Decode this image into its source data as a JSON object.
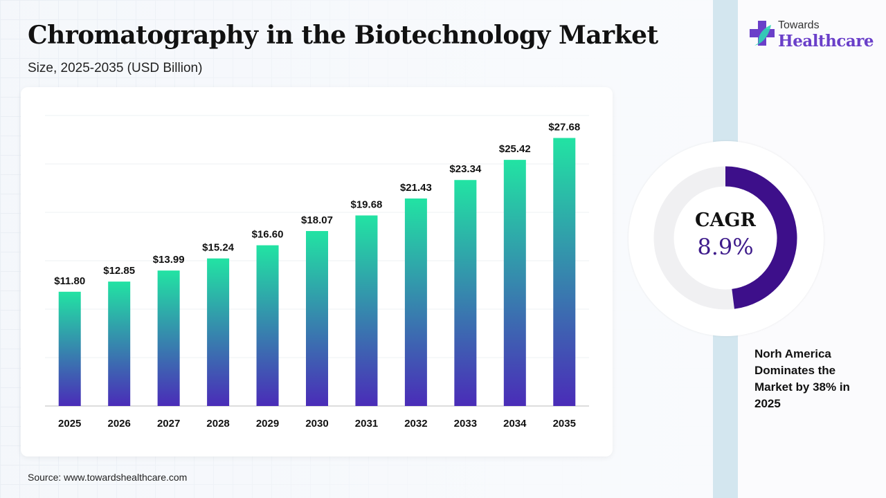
{
  "header": {
    "title": "Chromatography in the Biotechnology Market",
    "subtitle": "Size, 2025-2035 (USD Billion)"
  },
  "logo": {
    "line1": "Towards",
    "line2": "Healthcare",
    "icon": "medical-cross-leaf-icon"
  },
  "source": "Source: www.towardshealthcare.com",
  "cagr": {
    "label": "CAGR",
    "value": "8.9%",
    "ring_fraction": 0.48,
    "ring_color": "#3d0f8a",
    "track_color": "#f0f0f2"
  },
  "note": "Norh America Dominates the Market by 38% in 2025",
  "colors": {
    "bar_top": "#22e3a3",
    "bar_bottom": "#4a2cb8"
  },
  "chart_data": {
    "type": "bar",
    "title": "Chromatography in the Biotechnology Market",
    "xlabel": "",
    "ylabel": "",
    "categories": [
      "2025",
      "2026",
      "2027",
      "2028",
      "2029",
      "2030",
      "2031",
      "2032",
      "2033",
      "2034",
      "2035"
    ],
    "values": [
      11.8,
      12.85,
      13.99,
      15.24,
      16.6,
      18.07,
      19.68,
      21.43,
      23.34,
      25.42,
      27.68
    ],
    "labels": [
      "$11.80",
      "$12.85",
      "$13.99",
      "$15.24",
      "$16.60",
      "$18.07",
      "$19.68",
      "$21.43",
      "$23.34",
      "$25.42",
      "$27.68"
    ],
    "ylim": [
      0,
      30
    ],
    "grid": true,
    "gridStep": 5,
    "legend": "none"
  }
}
